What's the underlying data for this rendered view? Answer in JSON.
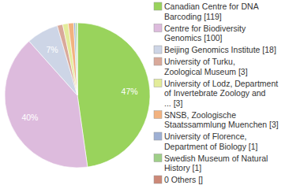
{
  "chart_data": {
    "type": "pie",
    "categories": [
      "Canadian Centre for DNA\nBarcoding [119]",
      "Centre for Biodiversity\nGenomics [100]",
      "Beijing Genomics Institute [18]",
      "University of Turku,\nZoological Museum [3]",
      "University of Lodz, Department\nof Invertebrate Zoology and\n... [3]",
      "SNSB, Zoologische\nStaatssammlung Muenchen [3]",
      "University of Florence,\nDepartment of Biology [1]",
      "Swedish Museum of Natural\nHistory [1]",
      "0 Others []"
    ],
    "values": [
      47,
      40,
      7,
      1.2,
      1.2,
      1.2,
      0.4,
      0.4,
      0
    ],
    "value_labels": [
      "47%",
      "40%",
      "7%",
      null,
      null,
      null,
      null,
      null,
      null
    ],
    "data_labels": true,
    "colors": [
      "#99d35c",
      "#ddbbdd",
      "#cdd5e6",
      "#d9a99a",
      "#e3ec9a",
      "#f2b27f",
      "#9eb0d4",
      "#9fcf88",
      "#cc8877"
    ],
    "legend": "right"
  }
}
